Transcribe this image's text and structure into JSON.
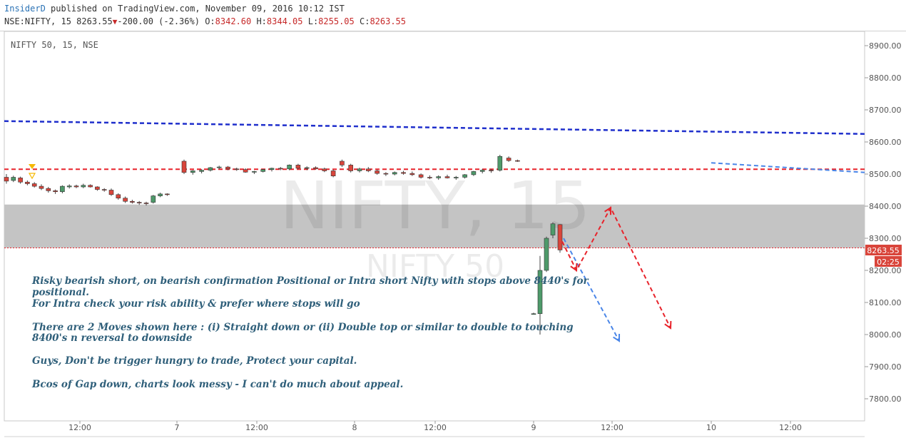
{
  "header": {
    "author": "InsiderD",
    "published_text": "published on TradingView.com, November 09, 2016 10:12 IST",
    "symbol_interval": "NSE:NIFTY, 15",
    "last": "8263.55",
    "change_arrow": "▼",
    "change": "-200.00 (-2.36%)",
    "o_label": "O:",
    "o_value": "8342.60",
    "h_label": "H:",
    "h_value": "8344.05",
    "l_label": "L:",
    "l_value": "8255.05",
    "c_label": "C:",
    "c_value": "8263.55"
  },
  "pane_label": "NIFTY 50, 15, NSE",
  "watermark": {
    "big": "NIFTY, 15",
    "small": "NIFTY 50"
  },
  "notes": [
    "Risky bearish short, on bearish confirmation Positional or Intra short Nifty with stops above 8440's for",
    "positional.",
    "For Intra check your risk ability & prefer where stops will go",
    "There are 2 Moves shown here : (i) Straight down or (ii) Double top or similar to double to touching",
    "8400's n reversal to downside",
    "Guys, Don't be trigger hungry to trade, Protect your capital.",
    "Bcos of Gap down, charts look messy - I can't do much about appeal."
  ],
  "price_label": {
    "value": "8263.55",
    "countdown": "02:25"
  },
  "colors": {
    "up": "#4e9a6a",
    "down": "#d9453b",
    "blue_line": "#1f2fcc",
    "red_line": "#e8232b",
    "zone": "#c4c4c4",
    "arrow_blue": "#4a86e8",
    "arrow_red": "#e8232b"
  },
  "chart_data": {
    "type": "candlestick",
    "ylim": [
      7750,
      8950
    ],
    "y_ticks": [
      "8900.00",
      "8800.00",
      "8700.00",
      "8600.00",
      "8500.00",
      "8400.00",
      "8300.00",
      "8200.00",
      "8100.00",
      "8000.00",
      "7900.00",
      "7800.00"
    ],
    "x_ticks": [
      "12:00",
      "7",
      "12:00",
      "8",
      "12:00",
      "9",
      "12:00",
      "10",
      "12:00"
    ],
    "candles": [
      [
        8490,
        8500,
        8470,
        8478
      ],
      [
        8480,
        8495,
        8475,
        8490
      ],
      [
        8488,
        8492,
        8470,
        8475
      ],
      [
        8475,
        8480,
        8465,
        8470
      ],
      [
        8470,
        8475,
        8458,
        8462
      ],
      [
        8462,
        8468,
        8450,
        8455
      ],
      [
        8455,
        8460,
        8442,
        8448
      ],
      [
        8448,
        8452,
        8438,
        8445
      ],
      [
        8445,
        8465,
        8440,
        8462
      ],
      [
        8460,
        8468,
        8455,
        8463
      ],
      [
        8463,
        8467,
        8456,
        8460
      ],
      [
        8460,
        8470,
        8456,
        8465
      ],
      [
        8465,
        8468,
        8458,
        8460
      ],
      [
        8460,
        8462,
        8448,
        8452
      ],
      [
        8452,
        8456,
        8445,
        8450
      ],
      [
        8450,
        8455,
        8432,
        8436
      ],
      [
        8436,
        8440,
        8420,
        8425
      ],
      [
        8425,
        8430,
        8410,
        8415
      ],
      [
        8415,
        8420,
        8408,
        8412
      ],
      [
        8412,
        8416,
        8404,
        8410
      ],
      [
        8410,
        8414,
        8402,
        8408
      ],
      [
        8412,
        8435,
        8408,
        8432
      ],
      [
        8432,
        8442,
        8428,
        8438
      ],
      [
        8438,
        8440,
        8432,
        8436
      ],
      [
        8540,
        8545,
        8500,
        8505
      ],
      [
        8505,
        8512,
        8498,
        8510
      ],
      [
        8508,
        8515,
        8502,
        8512
      ],
      [
        8512,
        8522,
        8508,
        8520
      ],
      [
        8520,
        8526,
        8515,
        8522
      ],
      [
        8522,
        8525,
        8512,
        8516
      ],
      [
        8516,
        8520,
        8510,
        8514
      ],
      [
        8514,
        8518,
        8504,
        8506
      ],
      [
        8506,
        8510,
        8500,
        8508
      ],
      [
        8508,
        8516,
        8505,
        8514
      ],
      [
        8514,
        8520,
        8508,
        8518
      ],
      [
        8518,
        8522,
        8512,
        8516
      ],
      [
        8516,
        8530,
        8512,
        8528
      ],
      [
        8528,
        8532,
        8515,
        8518
      ],
      [
        8518,
        8524,
        8512,
        8520
      ],
      [
        8520,
        8524,
        8514,
        8516
      ],
      [
        8516,
        8520,
        8506,
        8510
      ],
      [
        8510,
        8514,
        8490,
        8494
      ],
      [
        8540,
        8545,
        8522,
        8528
      ],
      [
        8528,
        8532,
        8505,
        8510
      ],
      [
        8510,
        8520,
        8505,
        8516
      ],
      [
        8516,
        8522,
        8506,
        8510
      ],
      [
        8510,
        8514,
        8498,
        8502
      ],
      [
        8502,
        8506,
        8494,
        8500
      ],
      [
        8500,
        8508,
        8496,
        8505
      ],
      [
        8505,
        8510,
        8498,
        8502
      ],
      [
        8502,
        8508,
        8494,
        8498
      ],
      [
        8498,
        8502,
        8486,
        8490
      ],
      [
        8490,
        8496,
        8484,
        8488
      ],
      [
        8488,
        8496,
        8482,
        8492
      ],
      [
        8492,
        8498,
        8486,
        8488
      ],
      [
        8488,
        8494,
        8482,
        8490
      ],
      [
        8490,
        8500,
        8486,
        8498
      ],
      [
        8498,
        8510,
        8494,
        8508
      ],
      [
        8508,
        8516,
        8502,
        8512
      ],
      [
        8512,
        8516,
        8504,
        8510
      ],
      [
        8512,
        8560,
        8508,
        8555
      ],
      [
        8550,
        8555,
        8538,
        8542
      ],
      [
        8542,
        8545,
        8538,
        8540
      ],
      [
        8065,
        8068,
        8062,
        8065
      ],
      [
        8065,
        8245,
        8000,
        8200
      ],
      [
        8200,
        8305,
        8195,
        8300
      ],
      [
        8310,
        8350,
        8300,
        8345
      ],
      [
        8342.6,
        8344.05,
        8255.05,
        8263.55
      ]
    ],
    "horizontal_lines": [
      {
        "value": 8515,
        "style": "dashed",
        "color": "red"
      },
      {
        "value": 8270,
        "style": "dotted",
        "color": "red"
      }
    ],
    "trend_lines": [
      {
        "from": [
          "start",
          8665
        ],
        "to": [
          "end",
          8625
        ],
        "color": "blue"
      },
      {
        "from": [
          "10",
          8535
        ],
        "to": [
          "end",
          8505
        ],
        "color": "lightblue"
      }
    ],
    "zones": [
      {
        "from": 8270,
        "to": 8405
      }
    ],
    "projection_arrows": [
      {
        "color": "blue",
        "points": [
          [
            8300
          ],
          [
            7980
          ]
        ]
      },
      {
        "color": "red",
        "points": [
          [
            8290
          ],
          [
            8200
          ],
          [
            8395
          ],
          [
            8020
          ]
        ]
      }
    ]
  }
}
